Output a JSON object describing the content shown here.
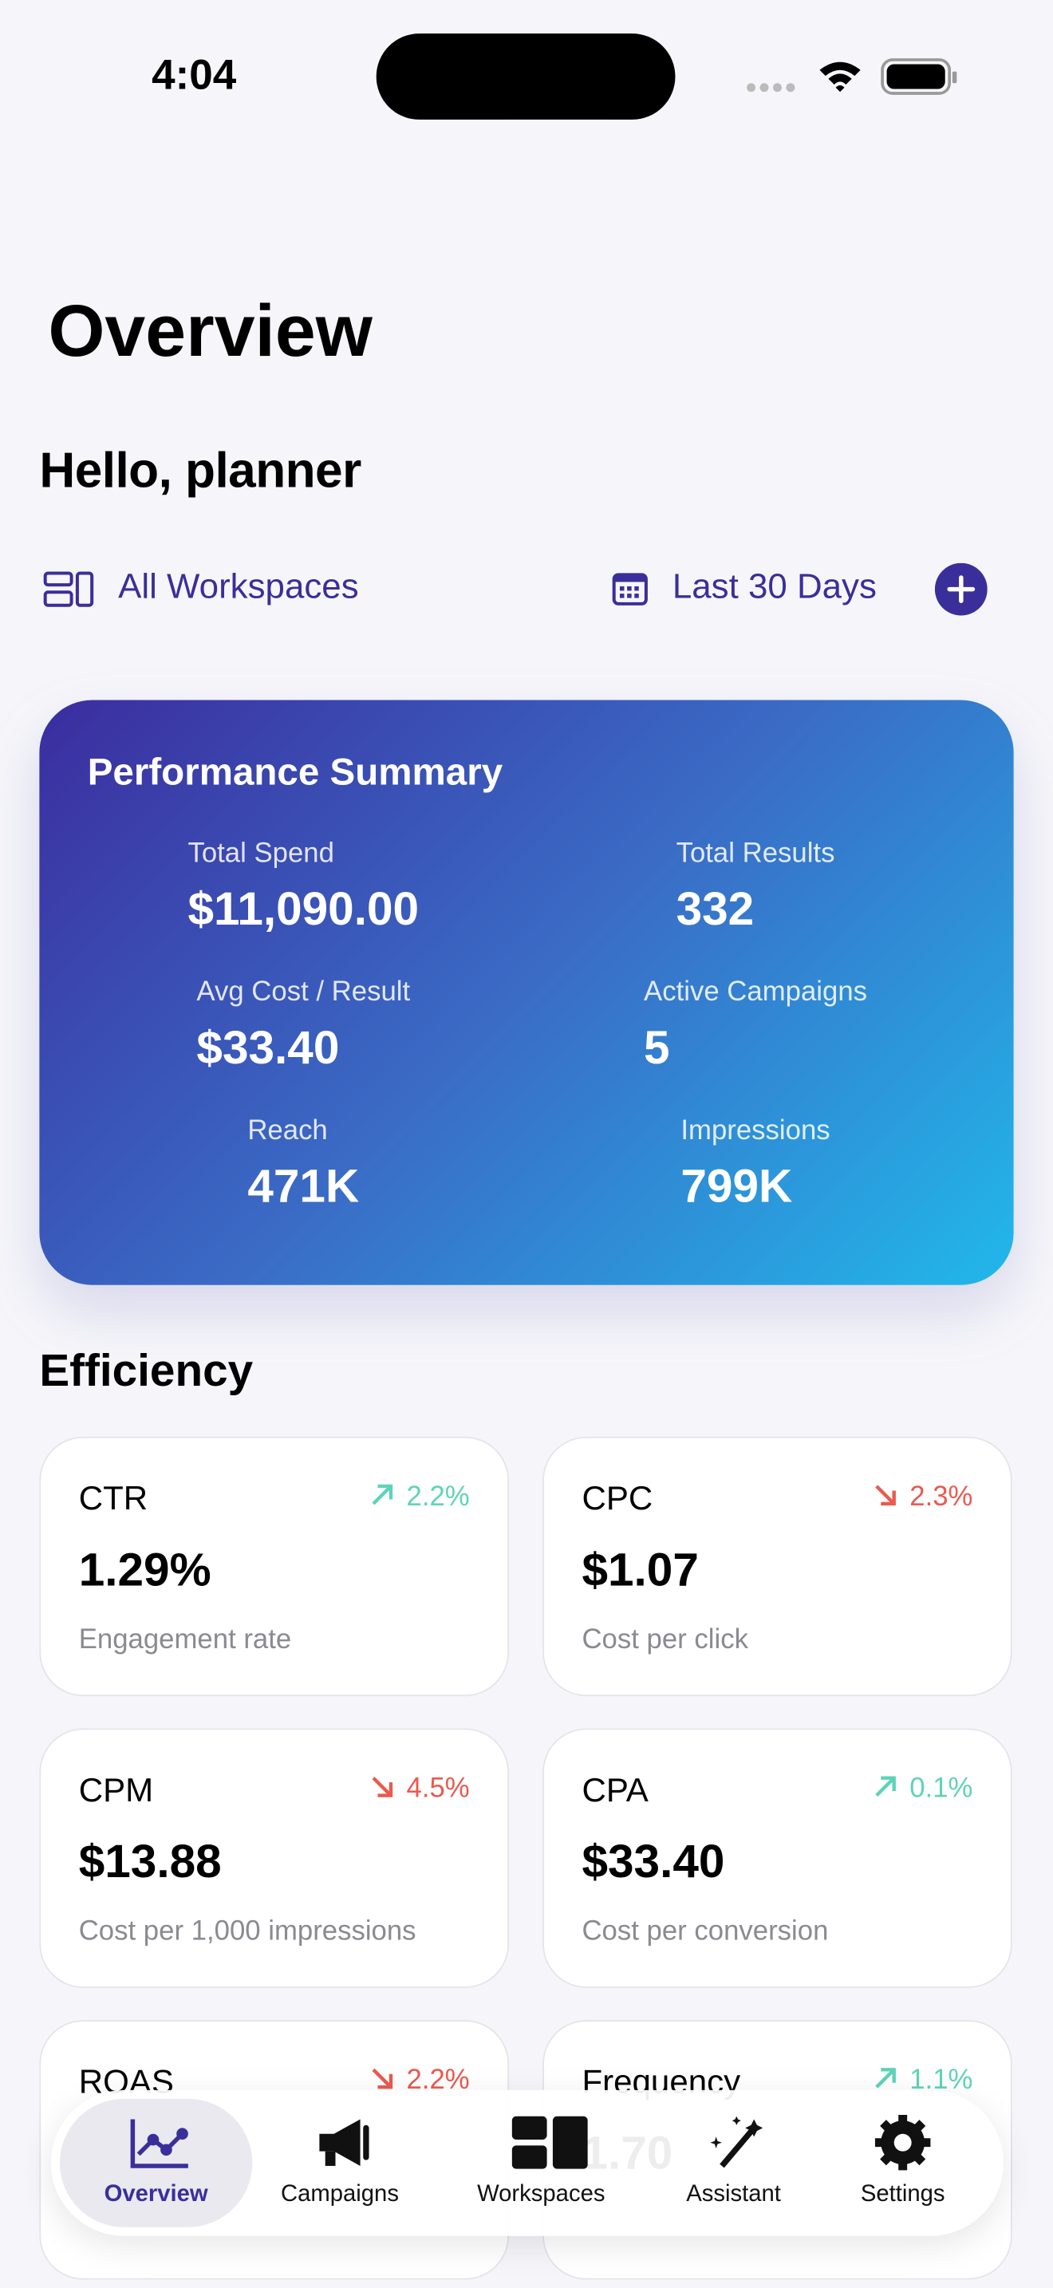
{
  "status_bar": {
    "time": "4:04"
  },
  "header": {
    "title": "Overview",
    "greeting": "Hello, planner"
  },
  "filters": {
    "workspace": "All Workspaces",
    "date_range": "Last 30 Days"
  },
  "summary": {
    "title": "Performance Summary",
    "metrics": [
      {
        "label": "Total Spend",
        "value": "$11,090.00"
      },
      {
        "label": "Total Results",
        "value": "332"
      },
      {
        "label": "Avg Cost / Result",
        "value": "$33.40"
      },
      {
        "label": "Active Campaigns",
        "value": "5"
      },
      {
        "label": "Reach",
        "value": "471K"
      },
      {
        "label": "Impressions",
        "value": "799K"
      }
    ]
  },
  "efficiency": {
    "title": "Efficiency",
    "cards": [
      {
        "name": "CTR",
        "change": "2.2%",
        "trend": "up",
        "value": "1.29%",
        "description": "Engagement rate"
      },
      {
        "name": "CPC",
        "change": "2.3%",
        "trend": "down",
        "value": "$1.07",
        "description": "Cost per click"
      },
      {
        "name": "CPM",
        "change": "4.5%",
        "trend": "down",
        "value": "$13.88",
        "description": "Cost per 1,000 impressions"
      },
      {
        "name": "CPA",
        "change": "0.1%",
        "trend": "up",
        "value": "$33.40",
        "description": "Cost per conversion"
      },
      {
        "name": "ROAS",
        "change": "2.2%",
        "trend": "down"
      },
      {
        "name": "Frequency",
        "change": "1.1%",
        "trend": "up",
        "value": "1.70"
      }
    ]
  },
  "tab_bar": {
    "active": 0,
    "tabs": [
      "Overview",
      "Campaigns",
      "Workspaces",
      "Assistant",
      "Settings"
    ]
  }
}
